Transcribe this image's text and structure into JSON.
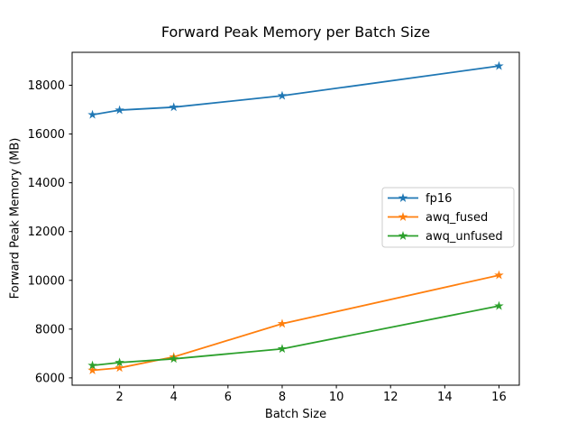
{
  "chart_data": {
    "type": "line",
    "title": "Forward Peak Memory per Batch Size",
    "xlabel": "Batch Size",
    "ylabel": "Forward Peak Memory (MB)",
    "x": [
      1,
      2,
      4,
      8,
      16
    ],
    "series": [
      {
        "name": "fp16",
        "color": "#1f77b4",
        "values": [
          16790,
          16980,
          17100,
          17570,
          18790
        ]
      },
      {
        "name": "awq_fused",
        "color": "#ff7f0e",
        "values": [
          6310,
          6410,
          6860,
          8220,
          10210
        ]
      },
      {
        "name": "awq_unfused",
        "color": "#2ca02c",
        "values": [
          6510,
          6630,
          6780,
          7190,
          8950
        ]
      }
    ],
    "marker": "star",
    "xlim": [
      0.25,
      16.75
    ],
    "ylim": [
      5700,
      19350
    ],
    "xticks": [
      2,
      4,
      6,
      8,
      10,
      12,
      14,
      16
    ],
    "yticks": [
      6000,
      8000,
      10000,
      12000,
      14000,
      16000,
      18000
    ],
    "grid": false,
    "legend_position": "center right",
    "legend_border_color": "#cccccc",
    "axes_color": "#000000",
    "background": "#ffffff"
  }
}
